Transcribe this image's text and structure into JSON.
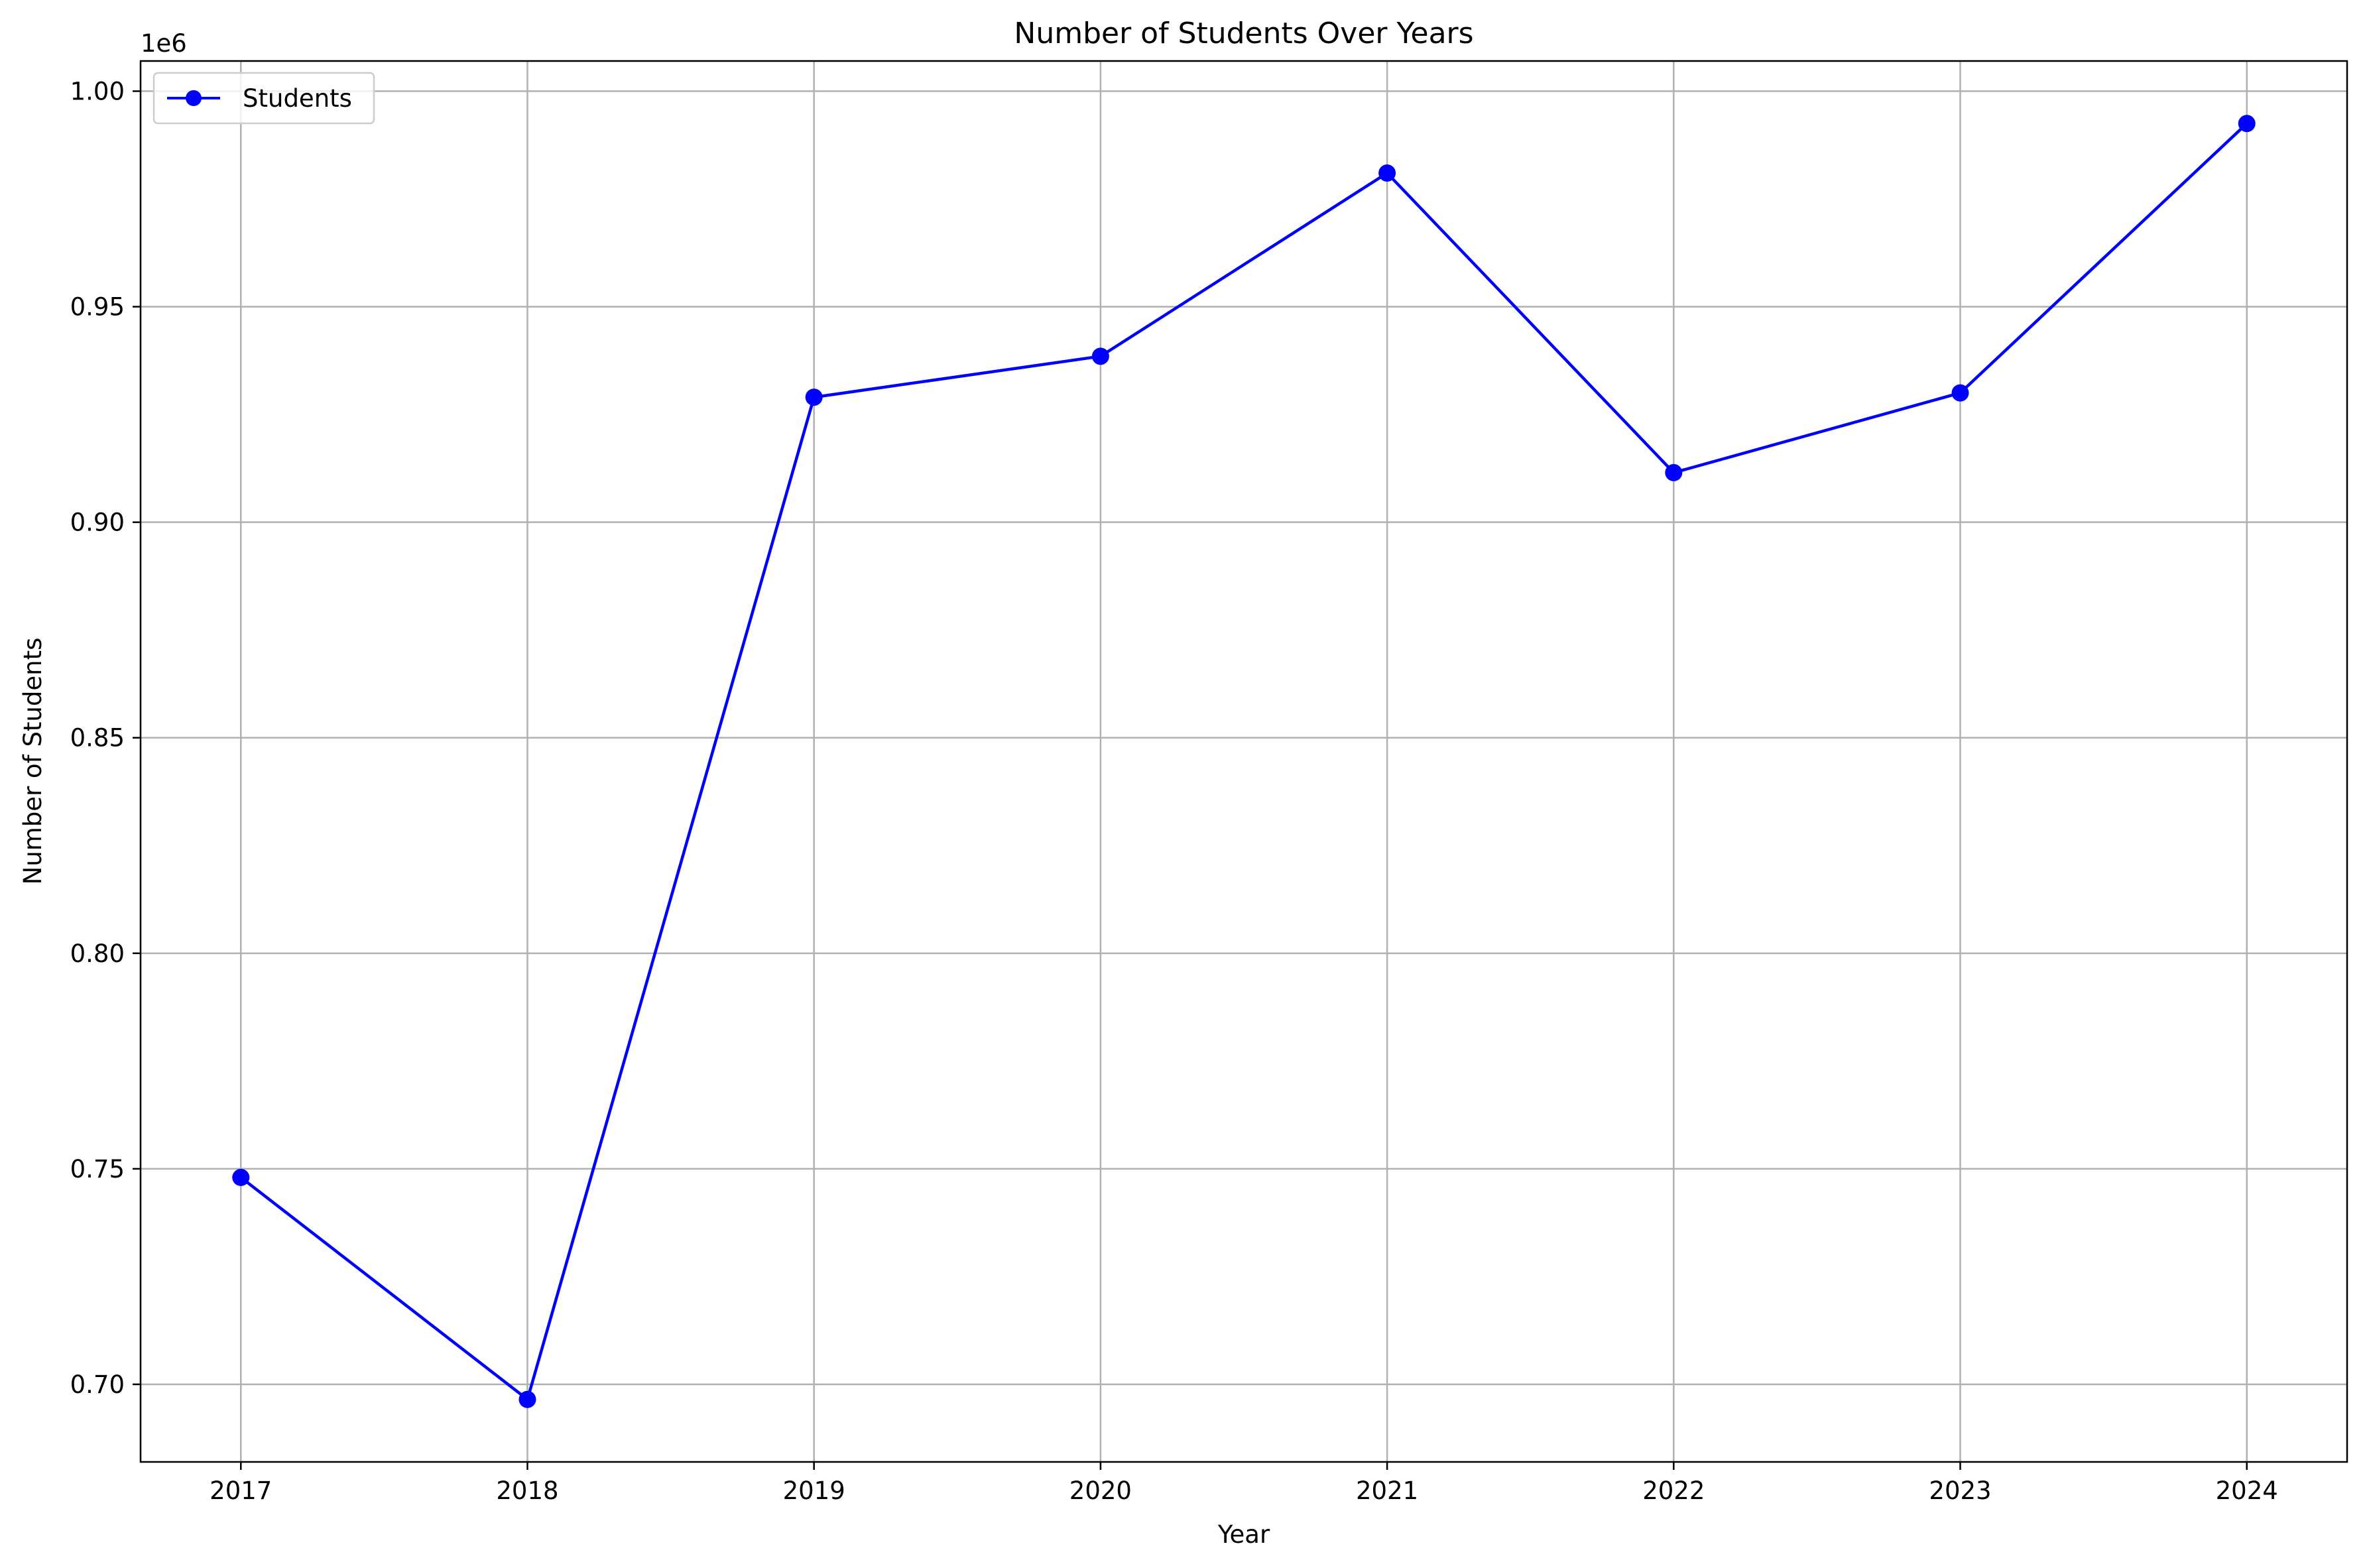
{
  "chart_data": {
    "type": "line",
    "title": "Number of Students Over Years",
    "xlabel": "Year",
    "ylabel": "Number of Students",
    "y_offset_label": "1e6",
    "x": [
      2017,
      2018,
      2019,
      2020,
      2021,
      2022,
      2023,
      2024
    ],
    "x_tick_labels": [
      "2017",
      "2018",
      "2019",
      "2020",
      "2021",
      "2022",
      "2023",
      "2024"
    ],
    "y_ticks": [
      0.7,
      0.75,
      0.8,
      0.85,
      0.9,
      0.95,
      1.0
    ],
    "y_tick_labels": [
      "0.70",
      "0.75",
      "0.80",
      "0.85",
      "0.90",
      "0.95",
      "1.00"
    ],
    "ylim": [
      0.682,
      1.007
    ],
    "xlim": [
      2016.65,
      2024.35
    ],
    "grid": true,
    "legend_position": "top-left",
    "series": [
      {
        "name": "Students",
        "color": "#0000ff",
        "marker": "circle",
        "values": [
          0.748,
          0.6965,
          0.929,
          0.9385,
          0.981,
          0.9115,
          0.93,
          0.9925
        ]
      }
    ]
  }
}
